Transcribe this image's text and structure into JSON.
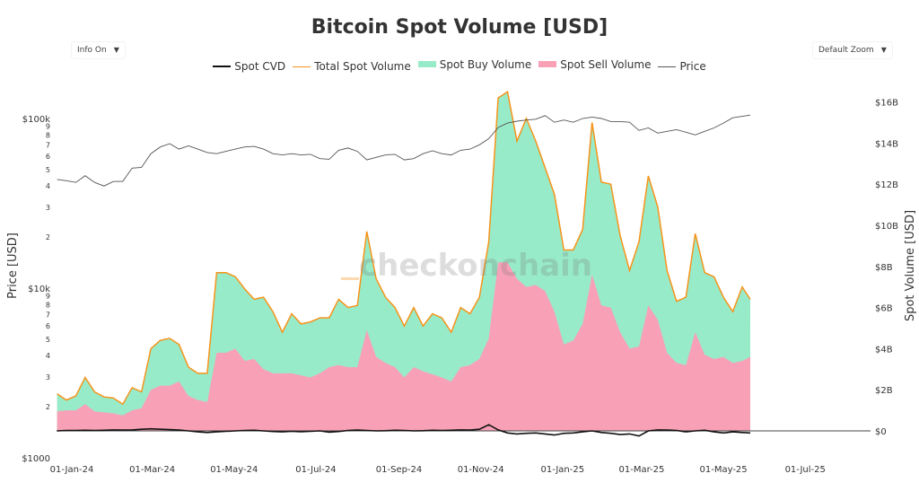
{
  "title": "Bitcoin Spot Volume [USD]",
  "controls": {
    "info": "Info On",
    "zoom": "Default Zoom",
    "arrow": "▼"
  },
  "watermark": "checkonchain",
  "legend": [
    {
      "label": "Spot CVD",
      "color": "#111111"
    },
    {
      "label": "Total Spot Volume",
      "color": "#f7931a"
    },
    {
      "label": "Spot Buy Volume",
      "color": "#98ebc9"
    },
    {
      "label": "Spot Sell Volume",
      "color": "#f8a1b6"
    },
    {
      "label": "Price",
      "color": "#555555"
    }
  ],
  "chart_data": {
    "type": "area",
    "title": "Bitcoin Spot Volume [USD]",
    "xlabel": "",
    "y_left": {
      "label": "Price [USD]",
      "scale": "log",
      "range": [
        1000,
        170000
      ],
      "major_ticks": [
        {
          "v": 1000,
          "label": "$1000"
        },
        {
          "v": 10000,
          "label": "$10k"
        },
        {
          "v": 100000,
          "label": "$100k"
        }
      ],
      "minor_ticks": [
        {
          "v": 2000,
          "label": "2"
        },
        {
          "v": 3000,
          "label": "3"
        },
        {
          "v": 4000,
          "label": "4"
        },
        {
          "v": 5000,
          "label": "5"
        },
        {
          "v": 6000,
          "label": "6"
        },
        {
          "v": 7000,
          "label": "7"
        },
        {
          "v": 8000,
          "label": "8"
        },
        {
          "v": 9000,
          "label": "9"
        },
        {
          "v": 20000,
          "label": "2"
        },
        {
          "v": 30000,
          "label": "3"
        },
        {
          "v": 40000,
          "label": "4"
        },
        {
          "v": 50000,
          "label": "5"
        },
        {
          "v": 60000,
          "label": "6"
        },
        {
          "v": 70000,
          "label": "7"
        },
        {
          "v": 80000,
          "label": "8"
        },
        {
          "v": 90000,
          "label": "9"
        }
      ]
    },
    "y_right": {
      "label": "Spot Volume [USD]",
      "scale": "linear",
      "range": [
        0,
        16
      ],
      "ticks": [
        {
          "v": 0,
          "label": "$0"
        },
        {
          "v": 2,
          "label": "$2B"
        },
        {
          "v": 4,
          "label": "$4B"
        },
        {
          "v": 6,
          "label": "$6B"
        },
        {
          "v": 8,
          "label": "$8B"
        },
        {
          "v": 10,
          "label": "$10B"
        },
        {
          "v": 12,
          "label": "$12B"
        },
        {
          "v": 14,
          "label": "$14B"
        },
        {
          "v": 16,
          "label": "$16B"
        }
      ]
    },
    "x_ticks": [
      "2024-01-01",
      "2024-03-01",
      "2024-05-01",
      "2024-07-01",
      "2024-09-01",
      "2024-11-01",
      "2025-01-01",
      "2025-03-01",
      "2025-05-01",
      "2025-07-01"
    ],
    "x_tick_labels": [
      "01-Jan-24",
      "01-Mar-24",
      "01-May-24",
      "01-Jul-24",
      "01-Sep-24",
      "01-Nov-24",
      "01-Jan-25",
      "01-Mar-25",
      "01-May-25",
      "01-Jul-25"
    ],
    "x_range": [
      "2023-12-21",
      "2025-08-15"
    ],
    "grid": false,
    "legend_position": "top",
    "dates": [
      "2023-12-21",
      "2023-12-28",
      "2024-01-04",
      "2024-01-11",
      "2024-01-18",
      "2024-01-25",
      "2024-02-01",
      "2024-02-08",
      "2024-02-15",
      "2024-02-22",
      "2024-02-29",
      "2024-03-07",
      "2024-03-14",
      "2024-03-21",
      "2024-03-28",
      "2024-04-04",
      "2024-04-11",
      "2024-04-18",
      "2024-04-25",
      "2024-05-02",
      "2024-05-09",
      "2024-05-16",
      "2024-05-23",
      "2024-05-30",
      "2024-06-06",
      "2024-06-13",
      "2024-06-20",
      "2024-06-27",
      "2024-07-04",
      "2024-07-11",
      "2024-07-18",
      "2024-07-25",
      "2024-08-01",
      "2024-08-08",
      "2024-08-15",
      "2024-08-22",
      "2024-08-29",
      "2024-09-05",
      "2024-09-12",
      "2024-09-19",
      "2024-09-26",
      "2024-10-03",
      "2024-10-10",
      "2024-10-17",
      "2024-10-24",
      "2024-10-31",
      "2024-11-07",
      "2024-11-14",
      "2024-11-21",
      "2024-11-28",
      "2024-12-05",
      "2024-12-12",
      "2024-12-19",
      "2024-12-26",
      "2025-01-02",
      "2025-01-09",
      "2025-01-16",
      "2025-01-23",
      "2025-01-30",
      "2025-02-06",
      "2025-02-13",
      "2025-02-20",
      "2025-02-27",
      "2025-03-06",
      "2025-03-13",
      "2025-03-20",
      "2025-03-27",
      "2025-04-03",
      "2025-04-10",
      "2025-04-17",
      "2025-04-24",
      "2025-05-01",
      "2025-05-08",
      "2025-05-15",
      "2025-05-21"
    ],
    "series": [
      {
        "name": "Total Spot Volume",
        "unit": "USD billions",
        "values": [
          1.8,
          1.5,
          1.7,
          2.6,
          1.9,
          1.65,
          1.6,
          1.3,
          2.1,
          1.9,
          4.0,
          4.4,
          4.5,
          4.2,
          3.1,
          2.8,
          2.8,
          7.7,
          7.7,
          7.5,
          6.9,
          6.4,
          6.5,
          5.8,
          4.8,
          5.7,
          5.2,
          5.3,
          5.5,
          5.5,
          6.4,
          6.0,
          6.1,
          9.7,
          7.4,
          6.5,
          6.0,
          5.1,
          6.0,
          5.1,
          5.7,
          5.5,
          4.8,
          6.0,
          5.7,
          6.5,
          9.2,
          16.2,
          16.5,
          14.1,
          15.2,
          14.1,
          12.8,
          11.5,
          8.8,
          8.8,
          9.8,
          15.0,
          12.1,
          12.0,
          9.5,
          7.8,
          9.2,
          12.4,
          10.9,
          7.8,
          6.3,
          6.5,
          9.6,
          7.7,
          7.5,
          6.5,
          5.8,
          7.0,
          6.4
        ]
      },
      {
        "name": "Spot Sell Volume",
        "unit": "USD billions",
        "values": [
          0.95,
          1.0,
          1.0,
          1.3,
          0.95,
          0.9,
          0.85,
          0.75,
          1.0,
          1.1,
          2.0,
          2.2,
          2.2,
          2.4,
          1.7,
          1.5,
          1.4,
          3.8,
          3.8,
          4.0,
          3.4,
          3.5,
          3.0,
          2.8,
          2.8,
          2.8,
          2.7,
          2.6,
          2.8,
          3.1,
          3.2,
          3.1,
          3.1,
          4.9,
          3.6,
          3.3,
          3.1,
          2.6,
          3.1,
          2.9,
          2.75,
          2.6,
          2.4,
          3.1,
          3.2,
          3.5,
          4.5,
          8.2,
          8.2,
          7.4,
          7.0,
          7.1,
          6.8,
          5.8,
          4.2,
          4.4,
          5.2,
          7.6,
          6.1,
          6.0,
          4.8,
          4.0,
          4.1,
          6.1,
          5.4,
          3.8,
          3.3,
          3.2,
          4.8,
          3.7,
          3.5,
          3.6,
          3.3,
          3.4,
          3.6
        ]
      },
      {
        "name": "Spot CVD",
        "unit": "USD billions",
        "values": [
          0.0,
          0.02,
          0.02,
          0.03,
          0.02,
          0.03,
          0.05,
          0.04,
          0.05,
          0.08,
          0.1,
          0.08,
          0.06,
          0.04,
          0.0,
          -0.05,
          -0.08,
          -0.05,
          -0.02,
          0.0,
          0.02,
          0.03,
          0.0,
          -0.03,
          -0.05,
          -0.02,
          -0.04,
          -0.02,
          0.0,
          -0.06,
          -0.03,
          0.02,
          0.04,
          0.02,
          0.0,
          0.01,
          0.03,
          0.02,
          0.0,
          0.01,
          0.03,
          0.02,
          0.03,
          0.05,
          0.04,
          0.08,
          0.3,
          0.05,
          -0.1,
          -0.15,
          -0.12,
          -0.1,
          -0.15,
          -0.2,
          -0.12,
          -0.1,
          -0.05,
          0.0,
          -0.08,
          -0.12,
          -0.18,
          -0.15,
          -0.25,
          0.0,
          0.05,
          0.04,
          0.02,
          -0.05,
          0.0,
          0.03,
          -0.05,
          -0.1,
          -0.05,
          -0.08,
          -0.1
        ]
      },
      {
        "name": "Price",
        "unit": "USD",
        "axis": "left",
        "values": [
          43700,
          43000,
          42000,
          46000,
          42000,
          40000,
          42500,
          42600,
          51000,
          51500,
          62000,
          68000,
          71000,
          66000,
          69000,
          66000,
          63000,
          62000,
          64000,
          66000,
          68000,
          68500,
          66000,
          62000,
          61000,
          62000,
          61000,
          61500,
          58000,
          57500,
          65000,
          67000,
          64000,
          57000,
          59000,
          61000,
          61500,
          57000,
          58000,
          62000,
          64500,
          62000,
          61000,
          65000,
          66000,
          70000,
          76000,
          88500,
          94000,
          96400,
          98000,
          99000,
          104000,
          95000,
          98000,
          95000,
          100000,
          102000,
          100000,
          96000,
          96000,
          95000,
          85000,
          88000,
          82000,
          84000,
          86000,
          83000,
          80000,
          84000,
          88000,
          94000,
          101000,
          103000,
          104700
        ]
      }
    ]
  }
}
